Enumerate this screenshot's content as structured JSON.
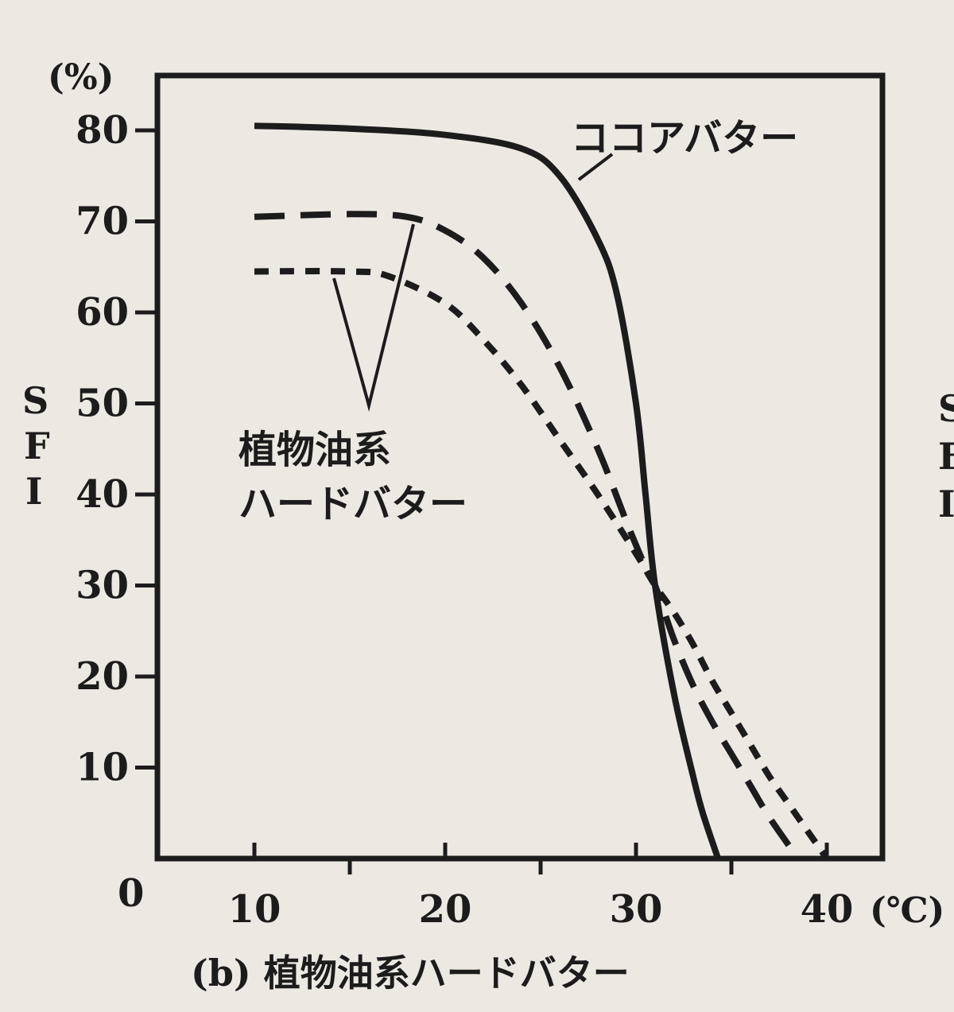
{
  "chart_data": {
    "type": "line",
    "title": "",
    "caption": "(b) 植物油系ハードバター",
    "ylabel": "SFI",
    "y_unit": "(%)",
    "x_unit": "(℃)",
    "x_ticks": [
      "10",
      "20",
      "30",
      "40"
    ],
    "y_ticks": [
      "10",
      "20",
      "30",
      "40",
      "50",
      "60",
      "70",
      "80"
    ],
    "origin_label": "0",
    "xlim": [
      5,
      42
    ],
    "ylim": [
      0,
      88
    ],
    "grid": false,
    "annotations": [
      {
        "text": "ココアバター"
      },
      {
        "text": "植物油系"
      },
      {
        "text": "ハードバター"
      }
    ],
    "series": [
      {
        "name": "ココアバター",
        "style": "solid",
        "points": [
          [
            10,
            80.5
          ],
          [
            15,
            80.2
          ],
          [
            20,
            79.5
          ],
          [
            24,
            78
          ],
          [
            26,
            75
          ],
          [
            28,
            68
          ],
          [
            29,
            62
          ],
          [
            30,
            50
          ],
          [
            30.5,
            40
          ],
          [
            31,
            30
          ],
          [
            32,
            18
          ],
          [
            33,
            9
          ],
          [
            33.5,
            5
          ],
          [
            34.3,
            0
          ]
        ]
      },
      {
        "name": "植物油系ハードバター",
        "style": "long-dash",
        "points": [
          [
            10,
            70.5
          ],
          [
            15,
            70.8
          ],
          [
            18,
            70.5
          ],
          [
            20,
            69
          ],
          [
            22,
            66
          ],
          [
            24,
            61
          ],
          [
            26,
            54
          ],
          [
            28,
            45
          ],
          [
            29.5,
            37
          ],
          [
            30.5,
            32
          ],
          [
            31,
            30
          ],
          [
            32,
            24
          ],
          [
            33,
            19
          ],
          [
            34,
            15
          ],
          [
            35,
            11.5
          ],
          [
            36,
            8
          ],
          [
            37,
            4.5
          ],
          [
            38.5,
            0
          ]
        ]
      },
      {
        "name": "植物油系ハードバター",
        "style": "short-dash",
        "points": [
          [
            10,
            64.5
          ],
          [
            15,
            64.5
          ],
          [
            17,
            64
          ],
          [
            20,
            61
          ],
          [
            22,
            57
          ],
          [
            24,
            52
          ],
          [
            26,
            46
          ],
          [
            28,
            40
          ],
          [
            30,
            33.5
          ],
          [
            31,
            30
          ],
          [
            32,
            27
          ],
          [
            33,
            23.5
          ],
          [
            34,
            19.5
          ],
          [
            35,
            16
          ],
          [
            36,
            12.5
          ],
          [
            37,
            9
          ],
          [
            38,
            6
          ],
          [
            39,
            3
          ],
          [
            40,
            0
          ]
        ]
      }
    ]
  },
  "edge_fragment": [
    "S",
    "F",
    "I"
  ]
}
